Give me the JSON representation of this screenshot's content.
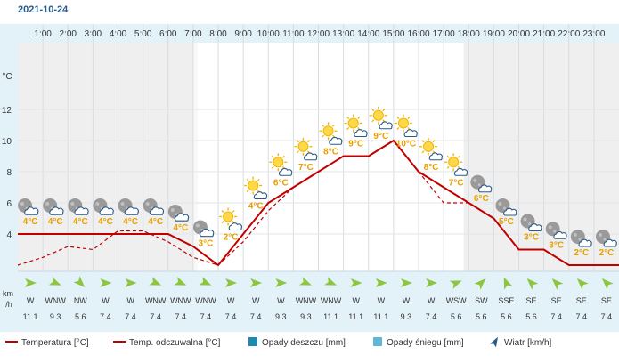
{
  "date": "2021-10-24",
  "hours": [
    "1:00",
    "2:00",
    "3:00",
    "4:00",
    "5:00",
    "6:00",
    "7:00",
    "8:00",
    "9:00",
    "10:00",
    "11:00",
    "12:00",
    "13:00",
    "14:00",
    "15:00",
    "16:00",
    "17:00",
    "18:00",
    "19:00",
    "20:00",
    "21:00",
    "22:00",
    "23:00"
  ],
  "yaxis_unit": "°C",
  "wind_unit": "km/h",
  "colors": {
    "temp_line": "#c00000",
    "temp_label": "#e8a000",
    "night_bg": "#efefef",
    "day_bg": "#ffffff",
    "axis_bg": "#e3f1f8",
    "wind_row_bg": "#e3f1f8",
    "wind_arrow": "#8cc63f",
    "header_text": "#2a5a8a",
    "rain_box": "#1e88b0",
    "snow_box": "#5bb8d8",
    "wind_icon": "#2a5a8a"
  },
  "chart_data": {
    "type": "line",
    "x": [
      0,
      1,
      2,
      3,
      4,
      5,
      6,
      7,
      8,
      9,
      10,
      11,
      12,
      13,
      14,
      15,
      16,
      17,
      18,
      19,
      20,
      21,
      22,
      23,
      24
    ],
    "ylim": [
      2,
      14
    ],
    "yticks": [
      4,
      6,
      8,
      10,
      12
    ],
    "series": [
      {
        "name": "Temperatura [°C]",
        "values": [
          4,
          4,
          4,
          4,
          4,
          4,
          4,
          3.2,
          2,
          4,
          6,
          7,
          8,
          9,
          9,
          10,
          8,
          7,
          6,
          5,
          3,
          3,
          2,
          2,
          2
        ]
      },
      {
        "name": "Temp. odczuwalna [°C]",
        "values": [
          2,
          2.5,
          3.2,
          3,
          4.2,
          4.2,
          3.5,
          2.5,
          2,
          3.5,
          5.5,
          7,
          8,
          9,
          9,
          10,
          8,
          6,
          6,
          5,
          3,
          3,
          2,
          2,
          2
        ]
      }
    ],
    "labels": [
      {
        "x": 0.5,
        "text": "4°C",
        "icon": "cloud-night"
      },
      {
        "x": 1.5,
        "text": "4°C",
        "icon": "cloud-night"
      },
      {
        "x": 2.5,
        "text": "4°C",
        "icon": "cloud-night"
      },
      {
        "x": 3.5,
        "text": "4°C",
        "icon": "cloud-night"
      },
      {
        "x": 4.5,
        "text": "4°C",
        "icon": "cloud-night"
      },
      {
        "x": 5.5,
        "text": "4°C",
        "icon": "cloud-night"
      },
      {
        "x": 6.5,
        "text": "4°C",
        "icon": "cloud-night"
      },
      {
        "x": 7.5,
        "text": "3°C",
        "icon": "cloud-night"
      },
      {
        "x": 8.5,
        "text": "2°C",
        "icon": "sun-cloud"
      },
      {
        "x": 9.5,
        "text": "4°C",
        "icon": "sun-cloud"
      },
      {
        "x": 10.5,
        "text": "6°C",
        "icon": "sun-cloud"
      },
      {
        "x": 11.5,
        "text": "7°C",
        "icon": "sun-cloud"
      },
      {
        "x": 12.5,
        "text": "8°C",
        "icon": "sun-cloud"
      },
      {
        "x": 13.5,
        "text": "9°C",
        "icon": "sun-cloud"
      },
      {
        "x": 14.5,
        "text": "9°C",
        "icon": "sun-cloud"
      },
      {
        "x": 15.5,
        "text": "10°C",
        "icon": "sun-cloud"
      },
      {
        "x": 16.5,
        "text": "8°C",
        "icon": "sun-cloud"
      },
      {
        "x": 17.5,
        "text": "7°C",
        "icon": "sun-cloud"
      },
      {
        "x": 18.5,
        "text": "6°C",
        "icon": "moon-cloud"
      },
      {
        "x": 19.5,
        "text": "5°C",
        "icon": "moon-cloud"
      },
      {
        "x": 20.5,
        "text": "3°C",
        "icon": "moon-cloud"
      },
      {
        "x": 21.5,
        "text": "3°C",
        "icon": "moon-cloud"
      },
      {
        "x": 22.5,
        "text": "2°C",
        "icon": "moon-cloud"
      },
      {
        "x": 23.5,
        "text": "2°C",
        "icon": "moon-cloud"
      }
    ],
    "wind_dir": [
      "W",
      "WNW",
      "NW",
      "W",
      "W",
      "WNW",
      "WNW",
      "WNW",
      "W",
      "W",
      "W",
      "WNW",
      "WNW",
      "W",
      "W",
      "W",
      "W",
      "WSW",
      "SW",
      "SSE",
      "SE",
      "SE",
      "SE",
      "SE"
    ],
    "wind_speed": [
      "11.1",
      "9.3",
      "5.6",
      "7.4",
      "7.4",
      "7.4",
      "7.4",
      "7.4",
      "7.4",
      "7.4",
      "9.3",
      "9.3",
      "11.1",
      "11.1",
      "11.1",
      "9.3",
      "7.4",
      "5.6",
      "5.6",
      "5.6",
      "5.6",
      "7.4",
      "7.4",
      "7.4"
    ],
    "night_ranges": [
      [
        0,
        7
      ],
      [
        17.8,
        24
      ]
    ]
  },
  "legend": {
    "temp": "Temperatura [°C]",
    "feels": "Temp. odczuwalna [°C]",
    "rain": "Opady deszczu [mm]",
    "snow": "Opady śniegu [mm]",
    "wind": "Wiatr [km/h]"
  }
}
